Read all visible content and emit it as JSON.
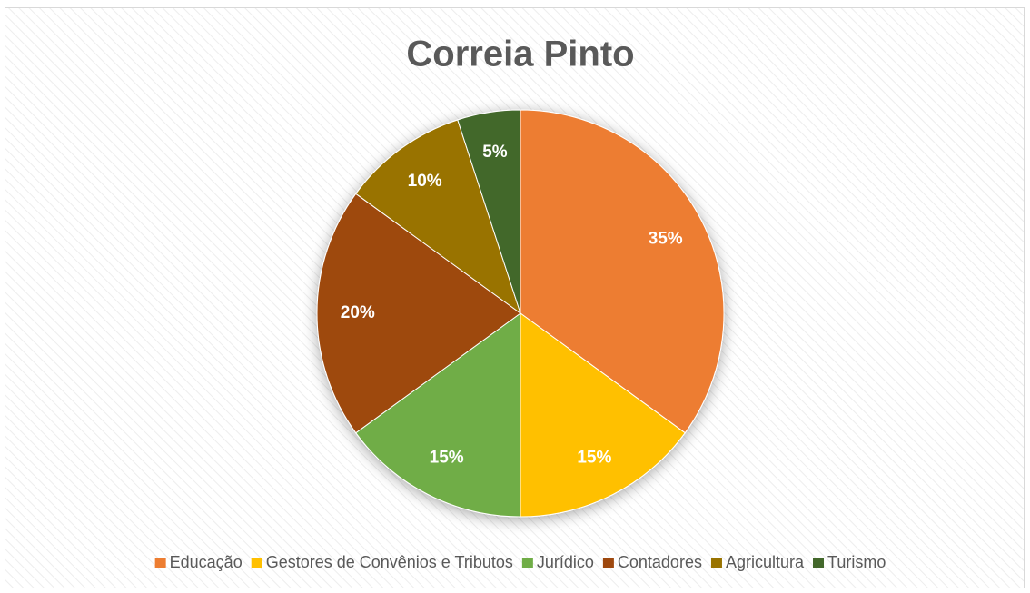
{
  "chart_data": {
    "type": "pie",
    "title": "Correia Pinto",
    "categories": [
      "Educação",
      "Gestores de Convênios e Tributos",
      "Jurídico",
      "Contadores",
      "Agricultura",
      "Turismo"
    ],
    "values": [
      35,
      15,
      15,
      20,
      10,
      5
    ],
    "value_labels": [
      "35%",
      "15%",
      "15%",
      "20%",
      "10%",
      "5%"
    ],
    "colors": [
      "#ED7D31",
      "#FFC000",
      "#70AD47",
      "#9E480E",
      "#997300",
      "#43682B"
    ],
    "legend": "bottom"
  }
}
